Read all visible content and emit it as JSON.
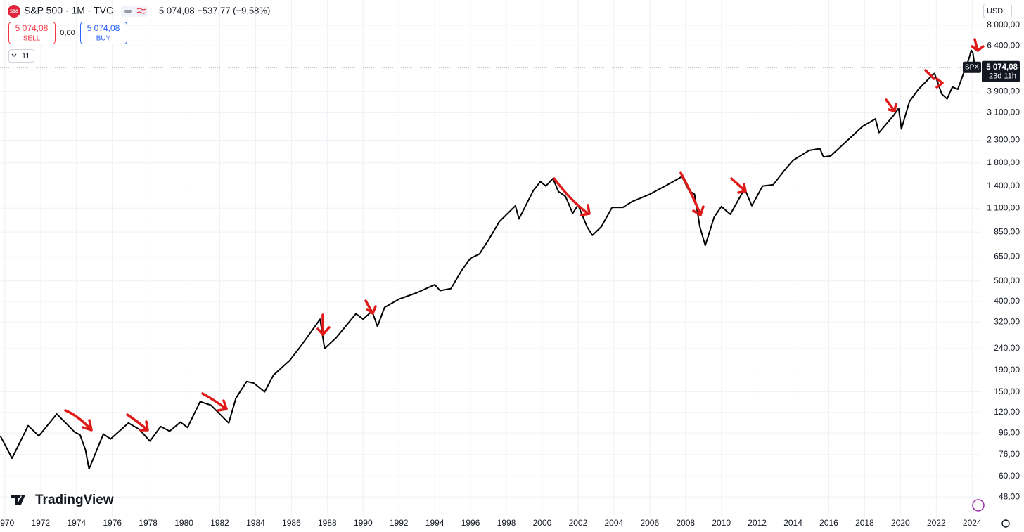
{
  "header": {
    "icon": "500",
    "symbol": "S&P 500 · 1M · TVC",
    "quote": "5 074,08  −537,77 (−9,58%)",
    "sell_price": "5 074,08",
    "sell": "SELL",
    "spread": "0,00",
    "buy_price": "5 074,08",
    "buy": "BUY",
    "indicators": "11",
    "currency": "USD",
    "ticker_tag": "SPX",
    "countdown": "23d 11h",
    "brand": "TradingView"
  },
  "chart_data": {
    "type": "line",
    "log_scale": true,
    "grid": true,
    "xlim": [
      1969.73,
      2024.5
    ],
    "ylim": [
      38.8,
      10530
    ],
    "xticks": [
      1970,
      1972,
      1974,
      1976,
      1978,
      1980,
      1982,
      1984,
      1986,
      1988,
      1990,
      1992,
      1994,
      1996,
      1998,
      2000,
      2002,
      2004,
      2006,
      2008,
      2010,
      2012,
      2014,
      2016,
      2018,
      2020,
      2022,
      2024
    ],
    "yticks": [
      {
        "value": 8000,
        "label": "8 000,00"
      },
      {
        "value": 6400,
        "label": "6 400,00"
      },
      {
        "value": 3900,
        "label": "3 900,00"
      },
      {
        "value": 3100,
        "label": "3 100,00"
      },
      {
        "value": 2300,
        "label": "2 300,00"
      },
      {
        "value": 1800,
        "label": "1 800,00"
      },
      {
        "value": 1400,
        "label": "1 400,00"
      },
      {
        "value": 1100,
        "label": "1 100,00"
      },
      {
        "value": 850,
        "label": "850,00"
      },
      {
        "value": 650,
        "label": "650,00"
      },
      {
        "value": 500,
        "label": "500,00"
      },
      {
        "value": 400,
        "label": "400,00"
      },
      {
        "value": 320,
        "label": "320,00"
      },
      {
        "value": 240,
        "label": "240,00"
      },
      {
        "value": 190,
        "label": "190,00"
      },
      {
        "value": 150,
        "label": "150,00"
      },
      {
        "value": 120,
        "label": "120,00"
      },
      {
        "value": 96,
        "label": "96,00"
      },
      {
        "value": 76,
        "label": "76,00"
      },
      {
        "value": 60,
        "label": "60,00"
      },
      {
        "value": 48,
        "label": "48,00"
      }
    ],
    "last_price": {
      "value": 5074.08,
      "label": "5 074,08"
    },
    "series": [
      {
        "name": "SPX",
        "color": "#000000",
        "x": [
          1969.75,
          1970.4,
          1971.3,
          1971.9,
          1972.9,
          1973.5,
          1973.9,
          1974.2,
          1974.5,
          1974.7,
          1975.5,
          1975.9,
          1976.9,
          1977.5,
          1978.1,
          1978.7,
          1979.2,
          1979.8,
          1980.2,
          1980.9,
          1981.5,
          1982.5,
          1982.9,
          1983.5,
          1983.9,
          1984.5,
          1985.0,
          1985.9,
          1986.5,
          1987.6,
          1987.85,
          1988.5,
          1989.6,
          1990.0,
          1990.5,
          1990.8,
          1991.2,
          1992.0,
          1993.0,
          1994.0,
          1994.3,
          1994.9,
          1995.5,
          1996.0,
          1996.5,
          1997.0,
          1997.6,
          1998.5,
          1998.7,
          1999.5,
          1999.9,
          2000.2,
          2000.6,
          2000.9,
          2001.3,
          2001.7,
          2002.0,
          2002.5,
          2002.8,
          2003.3,
          2003.9,
          2004.5,
          2005.0,
          2006.0,
          2007.0,
          2007.8,
          2008.2,
          2008.5,
          2008.8,
          2009.1,
          2009.6,
          2010.0,
          2010.5,
          2011.3,
          2011.7,
          2012.3,
          2012.9,
          2013.5,
          2014.0,
          2014.9,
          2015.5,
          2015.7,
          2016.1,
          2016.9,
          2017.9,
          2018.3,
          2018.6,
          2018.8,
          2019.6,
          2019.9,
          2020.05,
          2020.5,
          2021.0,
          2021.6,
          2021.9,
          2022.3,
          2022.6,
          2022.9,
          2023.2,
          2023.5,
          2023.8,
          2023.95,
          2024.05,
          2024.15
        ],
        "values": [
          93,
          73,
          104,
          93,
          118,
          105,
          97,
          94,
          80,
          65,
          95,
          90,
          107,
          100,
          88,
          103,
          98,
          108,
          102,
          135,
          130,
          107,
          140,
          168,
          165,
          150,
          180,
          211,
          245,
          330,
          240,
          270,
          350,
          330,
          360,
          305,
          375,
          410,
          440,
          480,
          450,
          460,
          560,
          640,
          670,
          780,
          950,
          1130,
          980,
          1330,
          1470,
          1400,
          1520,
          1320,
          1250,
          1040,
          1140,
          900,
          820,
          900,
          1110,
          1110,
          1180,
          1280,
          1420,
          1550,
          1330,
          1280,
          900,
          735,
          1000,
          1120,
          1030,
          1360,
          1130,
          1400,
          1420,
          1650,
          1850,
          2060,
          2100,
          1920,
          1940,
          2240,
          2680,
          2800,
          2900,
          2500,
          3000,
          3250,
          2600,
          3500,
          4000,
          4500,
          4750,
          3800,
          3600,
          4100,
          4000,
          4700,
          5500,
          6100,
          5900,
          5074.08
        ]
      }
    ]
  }
}
